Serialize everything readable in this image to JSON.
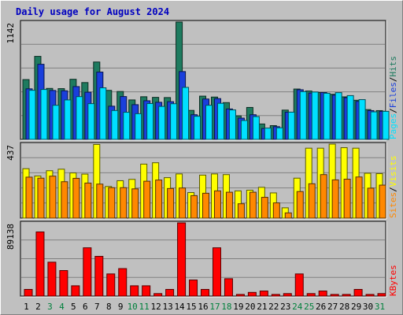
{
  "chart_data": {
    "type": "bar",
    "title": "Daily usage for August 2024",
    "days": [
      "1",
      "2",
      "3",
      "4",
      "5",
      "6",
      "7",
      "8",
      "9",
      "10",
      "11",
      "12",
      "13",
      "14",
      "15",
      "16",
      "17",
      "18",
      "19",
      "20",
      "21",
      "22",
      "23",
      "24",
      "25",
      "26",
      "27",
      "28",
      "29",
      "30",
      "31"
    ],
    "weekend_days": [
      "3",
      "4",
      "10",
      "11",
      "17",
      "18",
      "24",
      "25",
      "31"
    ],
    "panels": [
      {
        "id": "top",
        "max_label": "1142",
        "ymax": 1142,
        "series": [
          {
            "name": "Hits",
            "color": "#1e7b5f",
            "values": [
              582,
              808,
              496,
              494,
              585,
              553,
              753,
              477,
              466,
              384,
              415,
              409,
              407,
              1142,
              282,
              421,
              412,
              358,
              229,
              311,
              150,
              134,
              285,
              490,
              471,
              456,
              439,
              414,
              381,
              290,
              280
            ]
          },
          {
            "name": "Files",
            "color": "#1a3fdc",
            "values": [
              492,
              731,
              476,
              473,
              514,
              459,
              655,
              323,
              417,
              338,
              376,
              361,
              367,
              660,
              240,
              393,
              397,
              296,
              207,
              240,
              106,
              124,
              265,
              483,
              451,
              456,
              431,
              406,
              370,
              280,
              273
            ]
          },
          {
            "name": "Pages",
            "color": "#00e0ff",
            "values": [
              478,
              486,
              332,
              384,
              416,
              348,
              502,
              281,
              264,
              250,
              349,
              321,
              347,
              506,
              225,
              332,
              351,
              287,
              184,
              222,
              110,
              113,
              265,
              465,
              461,
              449,
              455,
              426,
              387,
              268,
              273
            ]
          }
        ],
        "axis_label": [
          {
            "text": "Pages",
            "color": "#00e0ff"
          },
          {
            "text": "/",
            "color": "#000000"
          },
          {
            "text": "Files",
            "color": "#1a3fdc"
          },
          {
            "text": "/",
            "color": "#000000"
          },
          {
            "text": "Hits",
            "color": "#1e7b5f"
          }
        ]
      },
      {
        "id": "middle",
        "max_label": "437",
        "ymax": 437,
        "series": [
          {
            "name": "Visits",
            "color": "#ffff00",
            "values": [
              292,
              249,
              280,
              289,
              267,
              260,
              435,
              187,
              221,
              229,
              319,
              327,
              239,
              261,
              151,
              254,
              261,
              257,
              161,
              165,
              182,
              149,
              61,
              236,
              413,
              413,
              437,
              416,
              413,
              265,
              263
            ]
          },
          {
            "name": "Sites",
            "color": "#ff8800",
            "values": [
              242,
              236,
              248,
              215,
              235,
              207,
              201,
              180,
              180,
              173,
              218,
              225,
              175,
              178,
              133,
              147,
              161,
              153,
              85,
              153,
              123,
              90,
              31,
              157,
              203,
              257,
              226,
              230,
              243,
              177,
              195
            ]
          }
        ],
        "axis_label": [
          {
            "text": "Sites",
            "color": "#ff8800"
          },
          {
            "text": "/",
            "color": "#000000"
          },
          {
            "text": "Visits",
            "color": "#ffff00"
          }
        ]
      },
      {
        "id": "bottom",
        "max_label": "89138",
        "ymax": 89138,
        "series": [
          {
            "name": "KBytes",
            "color": "#ff0000",
            "values": [
              8138,
              78100,
              41300,
              31100,
              12560,
              58800,
              48400,
              27000,
              33500,
              12560,
              12560,
              3080,
              8138,
              89138,
              19600,
              8138,
              58800,
              21200,
              2050,
              4500,
              6200,
              2050,
              3080,
              27000,
              3080,
              6200,
              2050,
              2050,
              8138,
              2050,
              3080
            ]
          }
        ],
        "axis_label": [
          {
            "text": "KBytes",
            "color": "#ff0000"
          }
        ]
      }
    ],
    "xlabel": "",
    "grid": true
  }
}
